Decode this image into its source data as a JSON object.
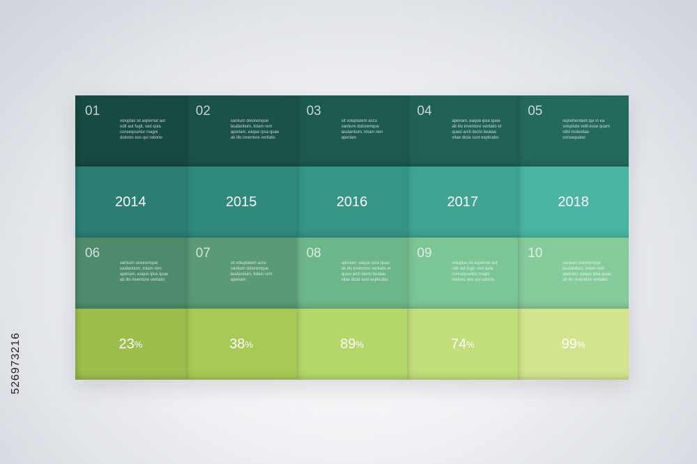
{
  "items": [
    {
      "num": "01",
      "text": "voluptas sit aspernat aut odit aut fugit, sed quia consequuntur magni dolores eos qui ratione",
      "year": "2014",
      "pct": "23",
      "color_top": "#174a40",
      "color_year": "#2a7e72",
      "color_mid": "#4e8a6c",
      "color_pct": "#9dbd4c"
    },
    {
      "num": "02",
      "text": "santium doloremque laudantium, totam rem aperiam, eaque ipsa quae ab illo inventore veritatis",
      "year": "2015",
      "pct": "38",
      "color_top": "#1b5247",
      "color_year": "#2f8a7c",
      "color_mid": "#5a9a76",
      "color_pct": "#a8c955"
    },
    {
      "num": "03",
      "text": "sit voluptatem accu santium doloremque laudantium, totam rem aperiam",
      "year": "2016",
      "pct": "89",
      "color_top": "#1d5a4e",
      "color_year": "#359686",
      "color_mid": "#6db68a",
      "color_pct": "#b5d76a"
    },
    {
      "num": "04",
      "text": "aperiam, eaque ipsa quae ab illo inventore veritatis et quasi arch itecto beatae vitae dicta sunt explicabo",
      "year": "2017",
      "pct": "74",
      "color_top": "#1f6254",
      "color_year": "#3ea592",
      "color_mid": "#7cc594",
      "color_pct": "#c2de7a"
    },
    {
      "num": "05",
      "text": "reprehendent qui in ea voluptate velit esse quam nihil molestiae consequatur",
      "year": "2018",
      "pct": "99",
      "color_top": "#236a5c",
      "color_year": "#4ab5a2",
      "color_mid": "#86cb9a",
      "color_pct": "#d2e58c"
    }
  ],
  "items2": [
    {
      "num": "06",
      "text": "santium doloremque laudantium, totam rem aperiam, eaque ipsa quae ab illo inventore veritatis"
    },
    {
      "num": "07",
      "text": "sit voluptatem accu santium doloremque laudantium, totam rem aperiam"
    },
    {
      "num": "08",
      "text": "aperiam, eaque ipsa quae ab illo inventore veritatis et quasi arch itecto beatae vitae dicta sunt explicabo"
    },
    {
      "num": "09",
      "text": "voluptas sit aspernat aut odit aut fugit, sed quia consequuntur magni dolores eos qui ratione"
    },
    {
      "num": "10",
      "text": "santium doloremque laudantium, totam rem aperiam, eaque ipsa quae ab illo inventore veritatis"
    }
  ],
  "pct_symbol": "%",
  "side_id": "526973216"
}
